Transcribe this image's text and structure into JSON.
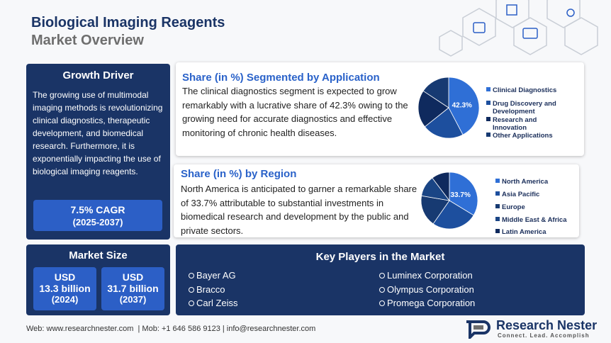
{
  "header": {
    "title": "Biological Imaging Reagents",
    "subtitle": "Market Overview"
  },
  "growth_driver": {
    "title": "Growth Driver",
    "text": "The growing use of multimodal imaging methods is revolutionizing clinical diagnostics, therapeutic development, and biomedical research. Furthermore, it is exponentially impacting the use of biological imaging reagents.",
    "cagr": "7.5% CAGR",
    "period": "(2025-2037)"
  },
  "market_size": {
    "title": "Market Size",
    "items": [
      {
        "currency": "USD",
        "value": "13.3 billion",
        "year": "(2024)"
      },
      {
        "currency": "USD",
        "value": "31.7 billion",
        "year": "(2037)"
      }
    ]
  },
  "application": {
    "title": "Share (in %) Segmented by Application",
    "text": "The clinical diagnostics segment is expected to grow remarkably with a lucrative share of 42.3% owing to the growing need for accurate diagnostics and effective monitoring of chronic health diseases.",
    "chart": {
      "type": "pie",
      "categories": [
        "Clinical Diagnostics",
        "Drug Discovery and Development",
        "Research and Innovation",
        "Other Applications"
      ],
      "values": [
        42.3,
        22,
        20,
        15.7
      ],
      "value_labels": [
        "42.3%",
        null,
        null,
        null
      ],
      "colors": [
        "#2f6fd6",
        "#1d4f9e",
        "#0f2a5e",
        "#173a72"
      ]
    }
  },
  "region": {
    "title": "Share (in %) by Region",
    "text": "North America is anticipated to garner a remarkable share of 33.7% attributable to substantial investments in biomedical research and development by the public and private sectors.",
    "chart": {
      "type": "pie",
      "categories": [
        "North America",
        "Asia Pacific",
        "Europe",
        "Middle East & Africa",
        "Latin America"
      ],
      "values": [
        33.7,
        26,
        18,
        12,
        10.3
      ],
      "value_labels": [
        "33.7%",
        null,
        null,
        null,
        null
      ],
      "colors": [
        "#2f6fd6",
        "#1d4f9e",
        "#173a72",
        "#1a4585",
        "#0f2a5e"
      ]
    }
  },
  "key_players": {
    "title": "Key Players in the Market",
    "left": [
      "Bayer AG",
      "Bracco",
      "Carl Zeiss"
    ],
    "right": [
      "Luminex Corporation",
      "Olympus Corporation",
      "Promega Corporation"
    ]
  },
  "footer": {
    "contact": "Web: www.researchnester.com  | Mob: +1 646 586 9123 | info@researchnester.com",
    "brand": "Research Nester",
    "tagline": "Connect. Lead. Accomplish"
  }
}
